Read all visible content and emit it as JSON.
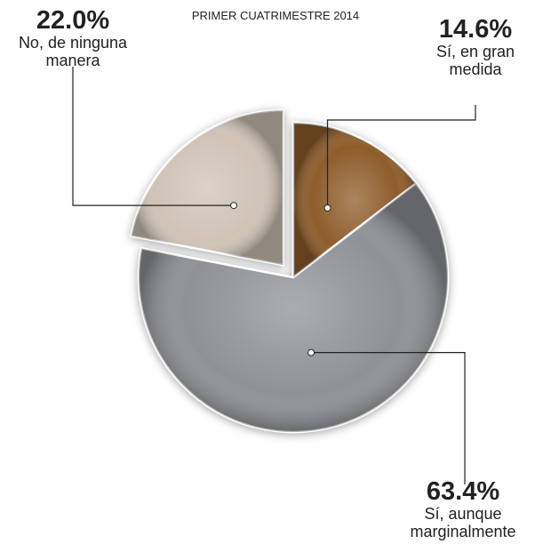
{
  "chart_data": {
    "type": "pie",
    "title": "PRIMER CUATRIMESTRE 2014",
    "categories": [
      "Sí, en gran medida",
      "Sí, aunque marginalmente",
      "No, de ninguna manera"
    ],
    "values": [
      14.6,
      63.4,
      22.0
    ],
    "value_labels": [
      "14.6%",
      "63.4%",
      "22.0%"
    ],
    "colors": [
      "#8e5d2c",
      "#8f9196",
      "#cfc3b6"
    ],
    "exploded": [
      false,
      false,
      true
    ]
  }
}
